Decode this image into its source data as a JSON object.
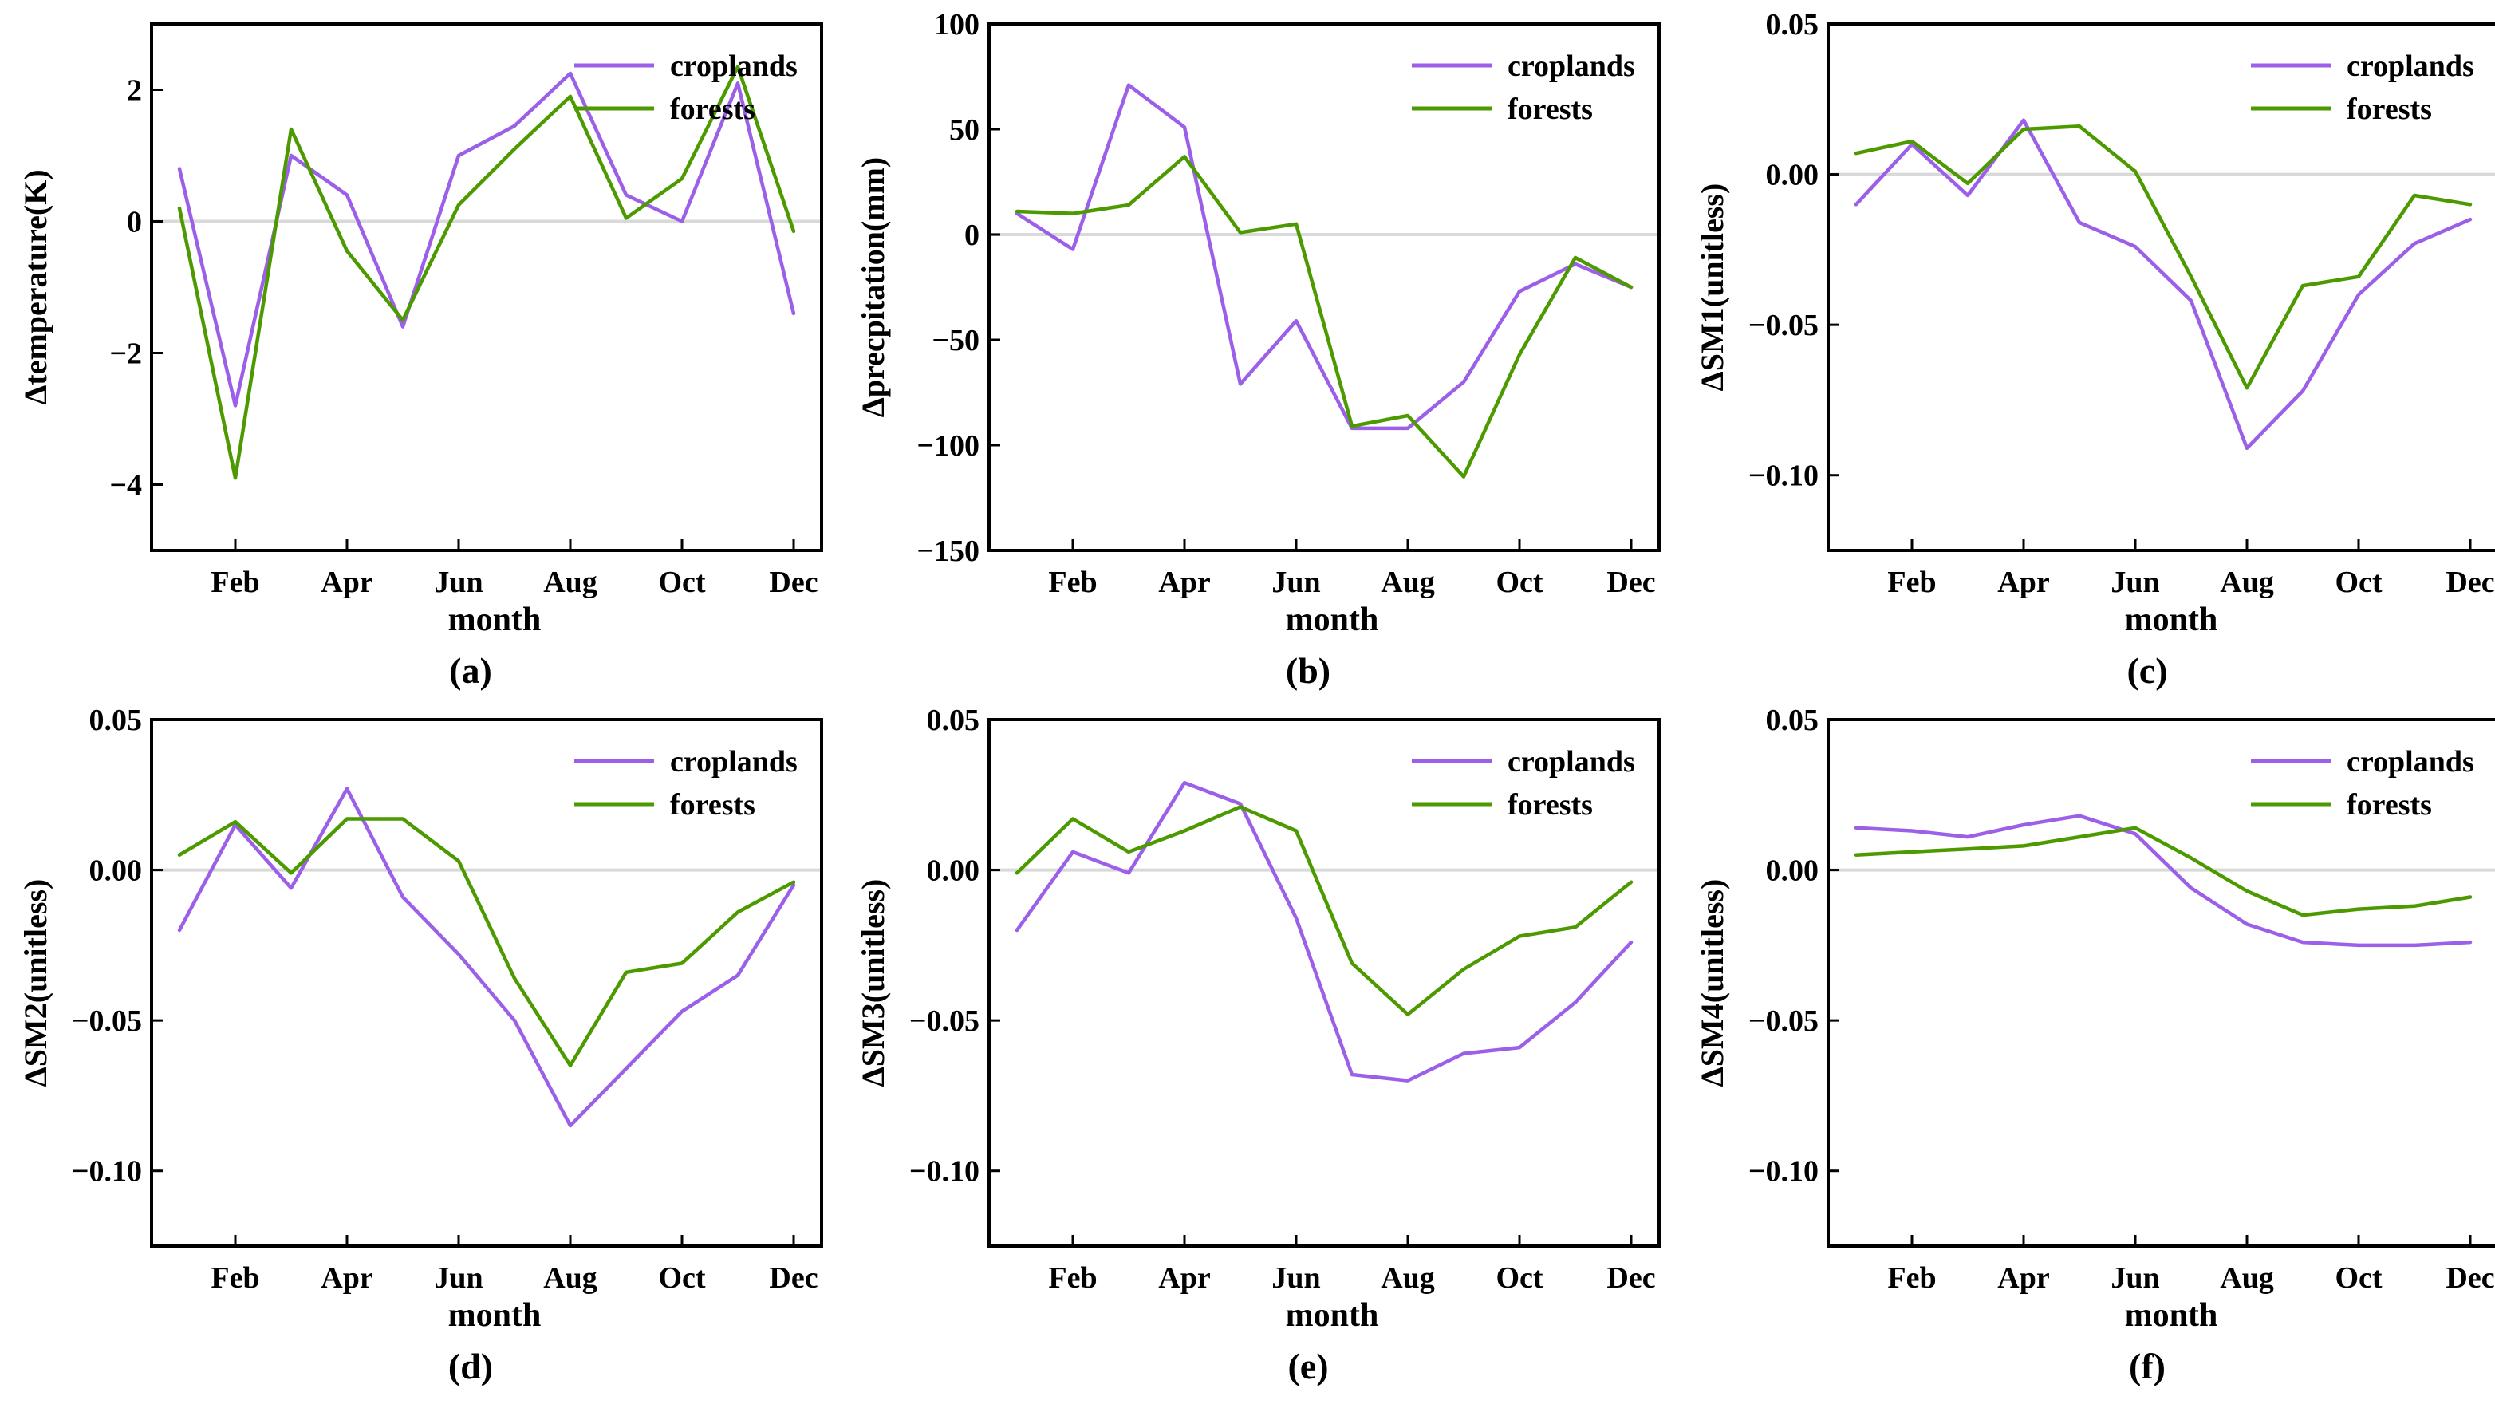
{
  "colors": {
    "croplands": "#9B5FE8",
    "forests": "#4C9A00",
    "zero_line": "#d9d9d9"
  },
  "chart_data": [
    {
      "id": "a",
      "type": "line",
      "panel_label": "(a)",
      "ylabel": "Δtemperature(K)",
      "xlabel": "month",
      "months": [
        1,
        2,
        3,
        4,
        5,
        6,
        7,
        8,
        9,
        10,
        11,
        12
      ],
      "tick_labels": [
        "Feb",
        "Apr",
        "Jun",
        "Aug",
        "Oct",
        "Dec"
      ],
      "ylim": [
        -5,
        3
      ],
      "yticks": [
        -4,
        -2,
        0,
        2
      ],
      "ytick_labels": [
        "−4",
        "−2",
        "0",
        "2"
      ],
      "series": [
        {
          "name": "croplands",
          "color": "#9B5FE8",
          "values": [
            0.8,
            -2.8,
            1.0,
            0.4,
            -1.6,
            1.0,
            1.45,
            2.25,
            0.4,
            0.0,
            2.1,
            -1.4
          ]
        },
        {
          "name": "forests",
          "color": "#4C9A00",
          "values": [
            0.2,
            -3.9,
            1.4,
            -0.45,
            -1.5,
            0.25,
            1.1,
            1.9,
            0.05,
            0.65,
            2.35,
            -0.15
          ]
        }
      ]
    },
    {
      "id": "b",
      "type": "line",
      "panel_label": "(b)",
      "ylabel": "Δprecpitation(mm)",
      "xlabel": "month",
      "months": [
        1,
        2,
        3,
        4,
        5,
        6,
        7,
        8,
        9,
        10,
        11,
        12
      ],
      "tick_labels": [
        "Feb",
        "Apr",
        "Jun",
        "Aug",
        "Oct",
        "Dec"
      ],
      "ylim": [
        -150,
        100
      ],
      "yticks": [
        -150,
        -100,
        -50,
        0,
        50,
        100
      ],
      "ytick_labels": [
        "−150",
        "−100",
        "−50",
        "0",
        "50",
        "100"
      ],
      "series": [
        {
          "name": "croplands",
          "color": "#9B5FE8",
          "values": [
            10,
            -7,
            71,
            51,
            -71,
            -41,
            -92,
            -92,
            -70,
            -27,
            -14,
            -25
          ]
        },
        {
          "name": "forests",
          "color": "#4C9A00",
          "values": [
            11,
            10,
            14,
            37,
            1,
            5,
            -91,
            -86,
            -115,
            -57,
            -11,
            -25
          ]
        }
      ]
    },
    {
      "id": "c",
      "type": "line",
      "panel_label": "(c)",
      "ylabel": "ΔSM1(unitless)",
      "xlabel": "month",
      "months": [
        1,
        2,
        3,
        4,
        5,
        6,
        7,
        8,
        9,
        10,
        11,
        12
      ],
      "tick_labels": [
        "Feb",
        "Apr",
        "Jun",
        "Aug",
        "Oct",
        "Dec"
      ],
      "ylim": [
        -0.125,
        0.05
      ],
      "yticks": [
        -0.1,
        -0.05,
        0.0,
        0.05
      ],
      "ytick_labels": [
        "−0.10",
        "−0.05",
        "0.00",
        "0.05"
      ],
      "series": [
        {
          "name": "croplands",
          "color": "#9B5FE8",
          "values": [
            -0.01,
            0.01,
            -0.007,
            0.018,
            -0.016,
            -0.024,
            -0.042,
            -0.091,
            -0.072,
            -0.04,
            -0.023,
            -0.015
          ]
        },
        {
          "name": "forests",
          "color": "#4C9A00",
          "values": [
            0.007,
            0.011,
            -0.003,
            0.015,
            0.016,
            0.001,
            -0.034,
            -0.071,
            -0.037,
            -0.034,
            -0.007,
            -0.01
          ]
        }
      ]
    },
    {
      "id": "d",
      "type": "line",
      "panel_label": "(d)",
      "ylabel": "ΔSM2(unitless)",
      "xlabel": "month",
      "months": [
        1,
        2,
        3,
        4,
        5,
        6,
        7,
        8,
        9,
        10,
        11,
        12
      ],
      "tick_labels": [
        "Feb",
        "Apr",
        "Jun",
        "Aug",
        "Oct",
        "Dec"
      ],
      "ylim": [
        -0.125,
        0.05
      ],
      "yticks": [
        -0.1,
        -0.05,
        0.0,
        0.05
      ],
      "ytick_labels": [
        "−0.10",
        "−0.05",
        "0.00",
        "0.05"
      ],
      "series": [
        {
          "name": "croplands",
          "color": "#9B5FE8",
          "values": [
            -0.02,
            0.015,
            -0.006,
            0.027,
            -0.009,
            -0.028,
            -0.05,
            -0.085,
            -0.066,
            -0.047,
            -0.035,
            -0.005
          ]
        },
        {
          "name": "forests",
          "color": "#4C9A00",
          "values": [
            0.005,
            0.016,
            -0.001,
            0.017,
            0.017,
            0.003,
            -0.036,
            -0.065,
            -0.034,
            -0.031,
            -0.014,
            -0.004
          ]
        }
      ]
    },
    {
      "id": "e",
      "type": "line",
      "panel_label": "(e)",
      "ylabel": "ΔSM3(unitless)",
      "xlabel": "month",
      "months": [
        1,
        2,
        3,
        4,
        5,
        6,
        7,
        8,
        9,
        10,
        11,
        12
      ],
      "tick_labels": [
        "Feb",
        "Apr",
        "Jun",
        "Aug",
        "Oct",
        "Dec"
      ],
      "ylim": [
        -0.125,
        0.05
      ],
      "yticks": [
        -0.1,
        -0.05,
        0.0,
        0.05
      ],
      "ytick_labels": [
        "−0.10",
        "−0.05",
        "0.00",
        "0.05"
      ],
      "series": [
        {
          "name": "croplands",
          "color": "#9B5FE8",
          "values": [
            -0.02,
            0.006,
            -0.001,
            0.029,
            0.022,
            -0.016,
            -0.068,
            -0.07,
            -0.061,
            -0.059,
            -0.044,
            -0.024
          ]
        },
        {
          "name": "forests",
          "color": "#4C9A00",
          "values": [
            -0.001,
            0.017,
            0.006,
            0.013,
            0.021,
            0.013,
            -0.031,
            -0.048,
            -0.033,
            -0.022,
            -0.019,
            -0.004
          ]
        }
      ]
    },
    {
      "id": "f",
      "type": "line",
      "panel_label": "(f)",
      "ylabel": "ΔSM4(unitless)",
      "xlabel": "month",
      "months": [
        1,
        2,
        3,
        4,
        5,
        6,
        7,
        8,
        9,
        10,
        11,
        12
      ],
      "tick_labels": [
        "Feb",
        "Apr",
        "Jun",
        "Aug",
        "Oct",
        "Dec"
      ],
      "ylim": [
        -0.125,
        0.05
      ],
      "yticks": [
        -0.1,
        -0.05,
        0.0,
        0.05
      ],
      "ytick_labels": [
        "−0.10",
        "−0.05",
        "0.00",
        "0.05"
      ],
      "series": [
        {
          "name": "croplands",
          "color": "#9B5FE8",
          "values": [
            0.014,
            0.013,
            0.011,
            0.015,
            0.018,
            0.012,
            -0.006,
            -0.018,
            -0.024,
            -0.025,
            -0.025,
            -0.024
          ]
        },
        {
          "name": "forests",
          "color": "#4C9A00",
          "values": [
            0.005,
            0.006,
            0.007,
            0.008,
            0.011,
            0.014,
            0.004,
            -0.007,
            -0.015,
            -0.013,
            -0.012,
            -0.009
          ]
        }
      ]
    }
  ]
}
